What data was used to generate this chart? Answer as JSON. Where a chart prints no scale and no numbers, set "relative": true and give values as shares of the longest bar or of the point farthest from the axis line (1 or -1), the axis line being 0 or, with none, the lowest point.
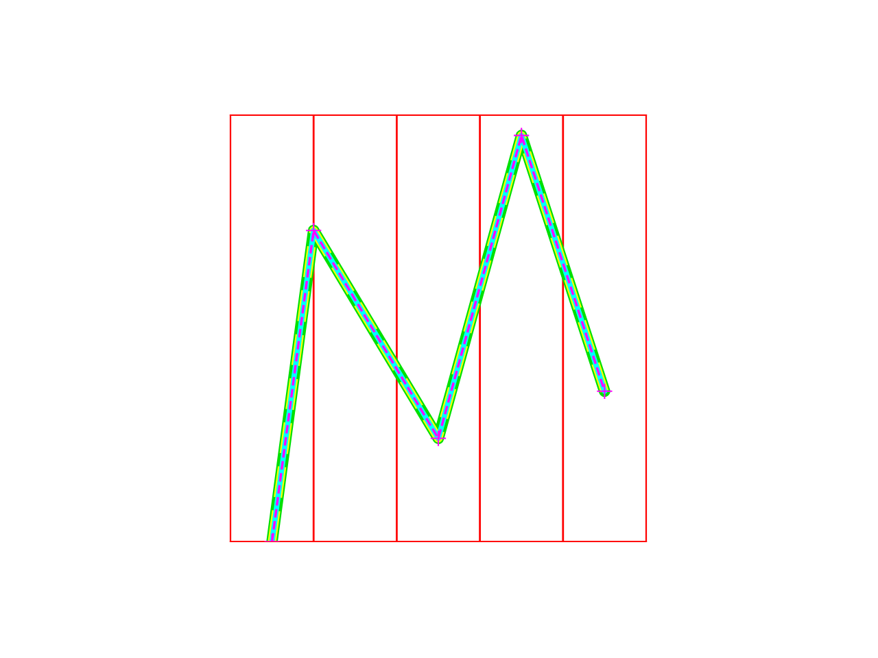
{
  "chart_data": {
    "type": "line",
    "relative": true,
    "categories": [
      null,
      null,
      null,
      null,
      null,
      null,
      null,
      null,
      null
    ],
    "grid": "x",
    "series": [
      {
        "color": "#00e000",
        "values": [
          0,
          0.766,
          null,
          null,
          0.254,
          null,
          1,
          null,
          0.37
        ],
        "line_style": "solid"
      },
      {
        "color": "#ffff00",
        "values": [
          0,
          0.766,
          null,
          null,
          0.254,
          null,
          1,
          null,
          0.37
        ],
        "line_style": "dashed"
      },
      {
        "color": "#00ffff",
        "values": [
          0,
          0.766,
          null,
          null,
          0.254,
          null,
          1,
          null,
          0.37
        ],
        "line_style": "solid"
      },
      {
        "color": "#ff00ff",
        "values": [
          0,
          0.766,
          null,
          null,
          0.254,
          null,
          1,
          null,
          0.37
        ],
        "line_style": "dashed",
        "marker": "cross"
      }
    ]
  }
}
